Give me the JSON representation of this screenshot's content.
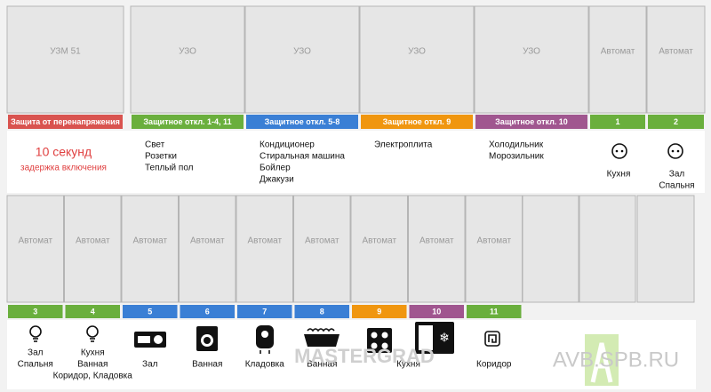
{
  "top": {
    "modules": [
      {
        "name": "УЗМ 51",
        "tag": "Защита от перенапряжения",
        "color": "#d9534f",
        "headline": "10 секунд",
        "subline": "задержка включения"
      },
      {
        "name": "УЗО",
        "tag": "Защитное откл. 1-4, 11",
        "color": "#6aaf3d",
        "notes": [
          "Свет",
          "Розетки",
          "Теплый пол"
        ]
      },
      {
        "name": "УЗО",
        "tag": "Защитное откл. 5-8",
        "color": "#3a7fd5",
        "notes": [
          "Кондиционер",
          "Стиральная машина",
          "Бойлер",
          "Джакузи"
        ]
      },
      {
        "name": "УЗО",
        "tag": "Защитное откл. 9",
        "color": "#f0960f",
        "notes": [
          "Электроплита"
        ]
      },
      {
        "name": "УЗО",
        "tag": "Защитное откл. 10",
        "color": "#a0568f",
        "notes": [
          "Холодильник",
          "Морозильник"
        ]
      },
      {
        "name": "Автомат",
        "tag": "1",
        "color": "#6aaf3d",
        "notes": [
          "Кухня"
        ]
      },
      {
        "name": "Автомат",
        "tag": "2",
        "color": "#6aaf3d",
        "notes": [
          "Зал",
          "Спальня"
        ]
      }
    ]
  },
  "bottom": {
    "modules": [
      {
        "name": "Автомат",
        "tag": "3",
        "color": "#6aaf3d",
        "notes": [
          "Зал",
          "Спальня"
        ]
      },
      {
        "name": "Автомат",
        "tag": "4",
        "color": "#6aaf3d",
        "notes": [
          "Кухня",
          "Ванная",
          "Коридор, Кладовка"
        ]
      },
      {
        "name": "Автомат",
        "tag": "5",
        "color": "#3a7fd5",
        "notes": [
          "Зал"
        ]
      },
      {
        "name": "Автомат",
        "tag": "6",
        "color": "#3a7fd5",
        "notes": [
          "Ванная"
        ]
      },
      {
        "name": "Автомат",
        "tag": "7",
        "color": "#3a7fd5",
        "notes": [
          "Кладовка"
        ]
      },
      {
        "name": "Автомат",
        "tag": "8",
        "color": "#3a7fd5",
        "notes": [
          "Ванная"
        ]
      },
      {
        "name": "Автомат",
        "tag": "9",
        "color": "#f0960f",
        "notes": []
      },
      {
        "name": "Автомат",
        "tag": "10",
        "color": "#a0568f",
        "notes": [
          "Кухня"
        ]
      },
      {
        "name": "Автомат",
        "tag": "11",
        "color": "#6aaf3d",
        "notes": [
          "Коридор"
        ]
      }
    ]
  },
  "watermarks": [
    "MASTERGRAD",
    "AVB.SPB.RU"
  ]
}
